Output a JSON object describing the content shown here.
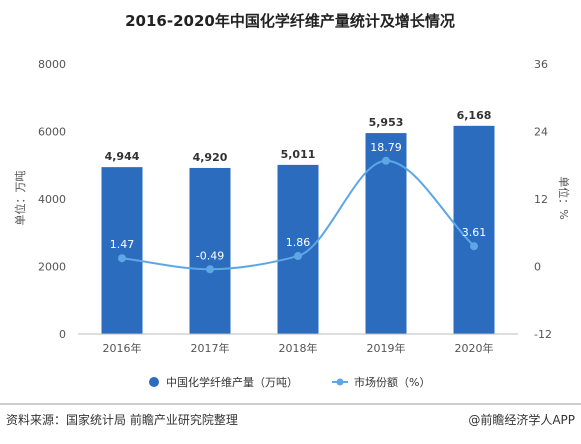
{
  "chart_data": {
    "type": "bar",
    "title": "2016-2020年中国化学纤维产量统计及增长情况",
    "categories": [
      "2016年",
      "2017年",
      "2018年",
      "2019年",
      "2020年"
    ],
    "series": [
      {
        "name": "中国化学纤维产量（万吨）",
        "type": "bar",
        "axis": "left",
        "color": "#2b6cbf",
        "values": [
          4944,
          4920,
          5011,
          5953,
          6168
        ],
        "labels": [
          "4,944",
          "4,920",
          "5,011",
          "5,953",
          "6,168"
        ]
      },
      {
        "name": "市场份额（%）",
        "type": "line",
        "axis": "right",
        "color": "#5ea7e6",
        "smooth": true,
        "values": [
          1.47,
          -0.49,
          1.86,
          18.79,
          3.61
        ],
        "labels": [
          "1.47",
          "-0.49",
          "1.86",
          "18.79",
          "3.61"
        ]
      }
    ],
    "y_left": {
      "label": "单位：万吨",
      "min": 0,
      "max": 8000,
      "ticks": [
        0,
        2000,
        4000,
        6000,
        8000
      ],
      "tick_labels": [
        "0",
        "2000",
        "4000",
        "6000",
        "8000"
      ]
    },
    "y_right": {
      "label": "单位：%",
      "min": -12,
      "max": 36,
      "ticks": [
        -12,
        0,
        12,
        24,
        36
      ],
      "tick_labels": [
        "-12",
        "0",
        "12",
        "24",
        "36"
      ]
    },
    "grid": false,
    "legend_position": "bottom"
  },
  "footer": {
    "source": "资料来源：国家统计局 前瞻产业研究院整理",
    "brand": "@前瞻经济学人APP"
  }
}
